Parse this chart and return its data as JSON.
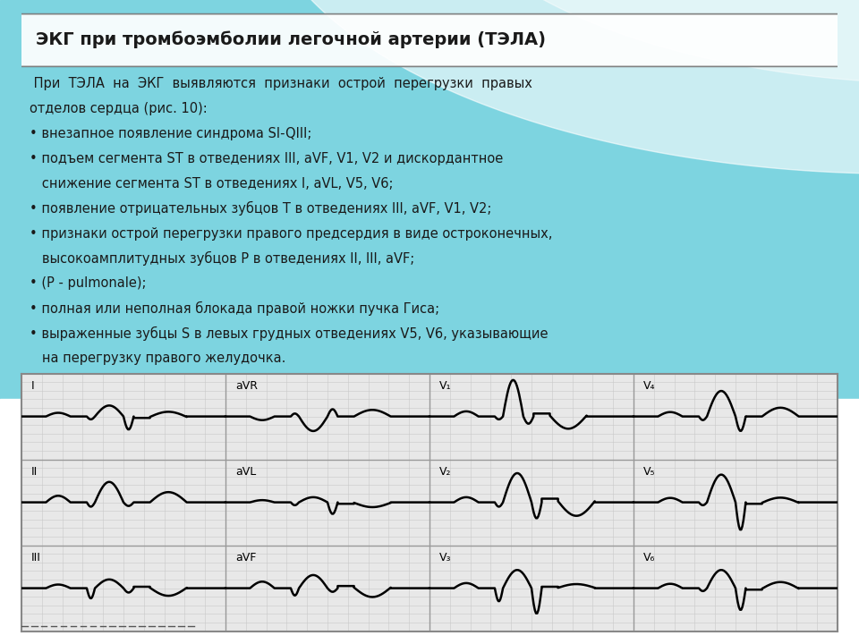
{
  "title": "ЭКГ при тромбоэмболии легочной артерии (ТЭЛА)",
  "text_color": "#1a1a1a",
  "title_fontsize": 14,
  "body_fontsize": 10.5,
  "body_text": [
    " При  ТЭЛА  на  ЭКГ  выявляются  признаки  острой  перегрузки  правых",
    "отделов сердца (рис. 10):",
    "• внезапное появление синдрома SI-QIII;",
    "• подъем сегмента ST в отведениях III, aVF, V1, V2 и дискордантное",
    "   снижение сегмента ST в отведениях I, aVL, V5, V6;",
    "• появление отрицательных зубцов Т в отведениях III, aVF, V1, V2;",
    "• признаки острой перегрузки правого предсердия в виде остроконечных,",
    "   высокоамплитудных зубцов Р в отведениях II, III, aVF;",
    "• (P - pulmonale);",
    "• полная или неполная блокада правой ножки пучка Гиса;",
    "• выраженные зубцы S в левых грудных отведениях V5, V6, указывающие",
    "   на перегрузку правого желудочка."
  ],
  "ecg_grid_color": "#c8c8c8",
  "ecg_line_color": "#000000",
  "ecg_bg_color": "#e8e8e8",
  "box_border_color": "#888888",
  "teal_color": "#7dd4e0",
  "white_color": "#ffffff"
}
